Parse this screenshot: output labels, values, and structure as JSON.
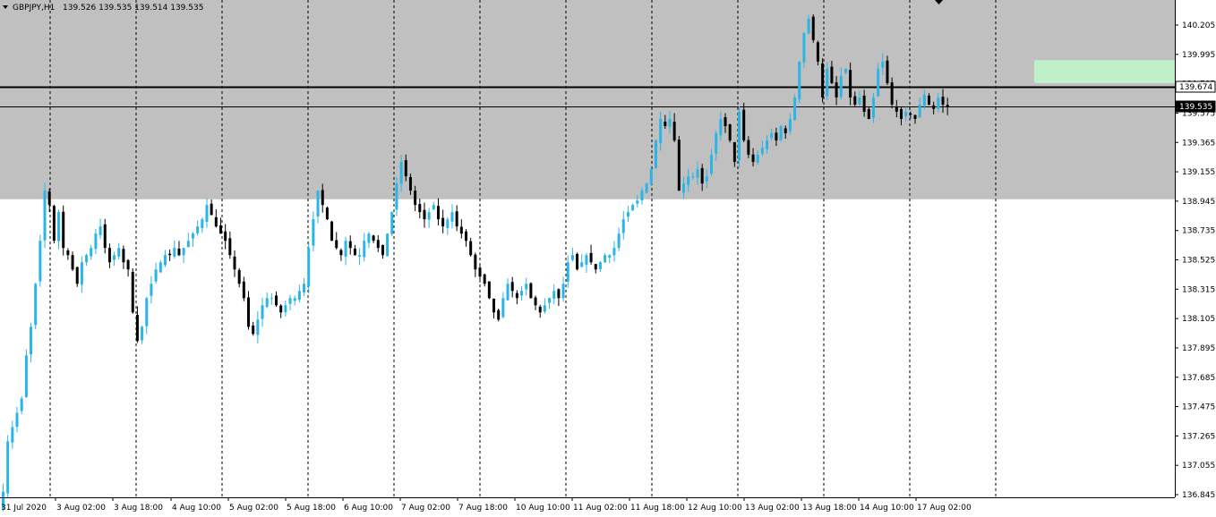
{
  "header": {
    "symbol": "GBPJPY,H1",
    "ohlc": "139.526 139.535 139.514 139.535"
  },
  "colors": {
    "background": "#ffffff",
    "grey_zone": "#c0c0c0",
    "green_zone": "#bff0c8",
    "bull_candle": "#29b6e6",
    "bear_candle": "#000000",
    "grid": "#000000",
    "axis": "#000000"
  },
  "chart_data": {
    "type": "candlestick",
    "title": "",
    "xlabel": "",
    "ylabel": "",
    "ylim": [
      136.81,
      140.28
    ],
    "y_ticks": [
      "140.205",
      "139.995",
      "139.785",
      "139.575",
      "139.365",
      "139.155",
      "138.945",
      "138.735",
      "138.525",
      "138.315",
      "138.105",
      "137.895",
      "137.685",
      "137.475",
      "137.265",
      "137.055",
      "136.845"
    ],
    "x_labels": [
      "31 Jul 2020",
      "3 Aug 02:00",
      "3 Aug 18:00",
      "4 Aug 10:00",
      "5 Aug 02:00",
      "5 Aug 18:00",
      "6 Aug 10:00",
      "7 Aug 02:00",
      "7 Aug 18:00",
      "10 Aug 10:00",
      "11 Aug 02:00",
      "11 Aug 18:00",
      "12 Aug 10:00",
      "13 Aug 02:00",
      "13 Aug 18:00",
      "14 Aug 10:00",
      "17 Aug 02:00"
    ],
    "horizontal_lines": [
      {
        "price": 139.674,
        "label": "139.674"
      },
      {
        "price": 139.535,
        "label": "139.535"
      }
    ],
    "zones": [
      {
        "name": "grey",
        "from": 138.89,
        "to": 140.28
      },
      {
        "name": "green",
        "from": 139.7,
        "to": 139.86,
        "start_index": 223
      }
    ],
    "series_close": [
      136.85,
      137.2,
      137.3,
      137.4,
      137.5,
      137.8,
      138.0,
      138.3,
      138.6,
      138.95,
      138.85,
      138.6,
      138.8,
      138.55,
      138.5,
      138.4,
      138.3,
      138.45,
      138.5,
      138.55,
      138.65,
      138.7,
      138.55,
      138.45,
      138.5,
      138.55,
      138.45,
      138.4,
      138.1,
      137.9,
      138.0,
      138.2,
      138.3,
      138.4,
      138.45,
      138.5,
      138.5,
      138.55,
      138.5,
      138.55,
      138.6,
      138.65,
      138.7,
      138.75,
      138.85,
      138.78,
      138.7,
      138.65,
      138.6,
      138.5,
      138.4,
      138.3,
      138.2,
      138.0,
      137.95,
      138.05,
      138.15,
      138.2,
      138.2,
      138.15,
      138.1,
      138.15,
      138.2,
      138.2,
      138.25,
      138.3,
      138.55,
      138.75,
      138.95,
      138.85,
      138.75,
      138.6,
      138.55,
      138.5,
      138.6,
      138.55,
      138.5,
      138.5,
      138.6,
      138.65,
      138.6,
      138.55,
      138.5,
      138.65,
      138.8,
      139.0,
      139.15,
      139.05,
      138.95,
      138.85,
      138.8,
      138.75,
      138.8,
      138.85,
      138.75,
      138.7,
      138.75,
      138.8,
      138.7,
      138.65,
      138.6,
      138.5,
      138.4,
      138.35,
      138.3,
      138.2,
      138.1,
      138.05,
      138.2,
      138.3,
      138.25,
      138.2,
      138.25,
      138.3,
      138.2,
      138.15,
      138.1,
      138.15,
      138.2,
      138.25,
      138.2,
      138.3,
      138.45,
      138.5,
      138.4,
      138.45,
      138.5,
      138.45,
      138.4,
      138.45,
      138.5,
      138.5,
      138.55,
      138.65,
      138.75,
      138.8,
      138.85,
      138.88,
      138.95,
      139.0,
      139.1,
      139.3,
      139.45,
      139.4,
      139.45,
      139.3,
      138.95,
      139.0,
      139.05,
      139.05,
      139.1,
      139.0,
      139.05,
      139.2,
      139.35,
      139.45,
      139.4,
      139.3,
      139.15,
      139.5,
      139.3,
      139.2,
      139.15,
      139.2,
      139.25,
      139.3,
      139.35,
      139.3,
      139.4,
      139.35,
      139.45,
      139.6,
      139.85,
      140.05,
      140.15,
      140.0,
      139.85,
      139.6,
      139.8,
      139.7,
      139.6,
      139.75,
      139.8,
      139.6,
      139.55,
      139.6,
      139.5,
      139.45,
      139.6,
      139.8,
      139.85,
      139.7,
      139.55,
      139.5,
      139.45,
      139.5,
      139.48,
      139.45,
      139.55,
      139.62,
      139.55,
      139.52,
      139.6,
      139.55,
      139.535
    ]
  }
}
